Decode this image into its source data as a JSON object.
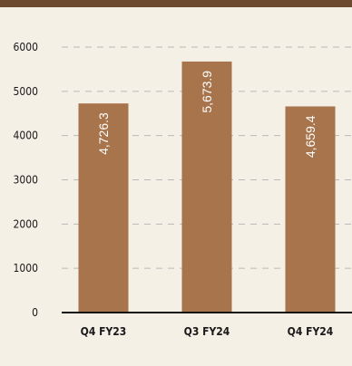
{
  "chart_data": {
    "type": "bar",
    "categories": [
      "Q4 FY23",
      "Q3 FY24",
      "Q4 FY24"
    ],
    "values": [
      4726.3,
      5673.9,
      4659.4
    ],
    "value_labels": [
      "4,726.3",
      "5,673.9",
      "4,659.4"
    ],
    "y_ticks": [
      "0",
      "1000",
      "2000",
      "3000",
      "4000",
      "5000",
      "6000"
    ],
    "ylim": [
      0,
      6000
    ],
    "grid": "horizontal-dashed",
    "colors": {
      "bar": "#a8744b",
      "top_bar": "#6b4a2f",
      "background": "#f5f0e6",
      "grid": "#b9b9b9",
      "axis": "#111111",
      "label": "#ffffff"
    }
  }
}
